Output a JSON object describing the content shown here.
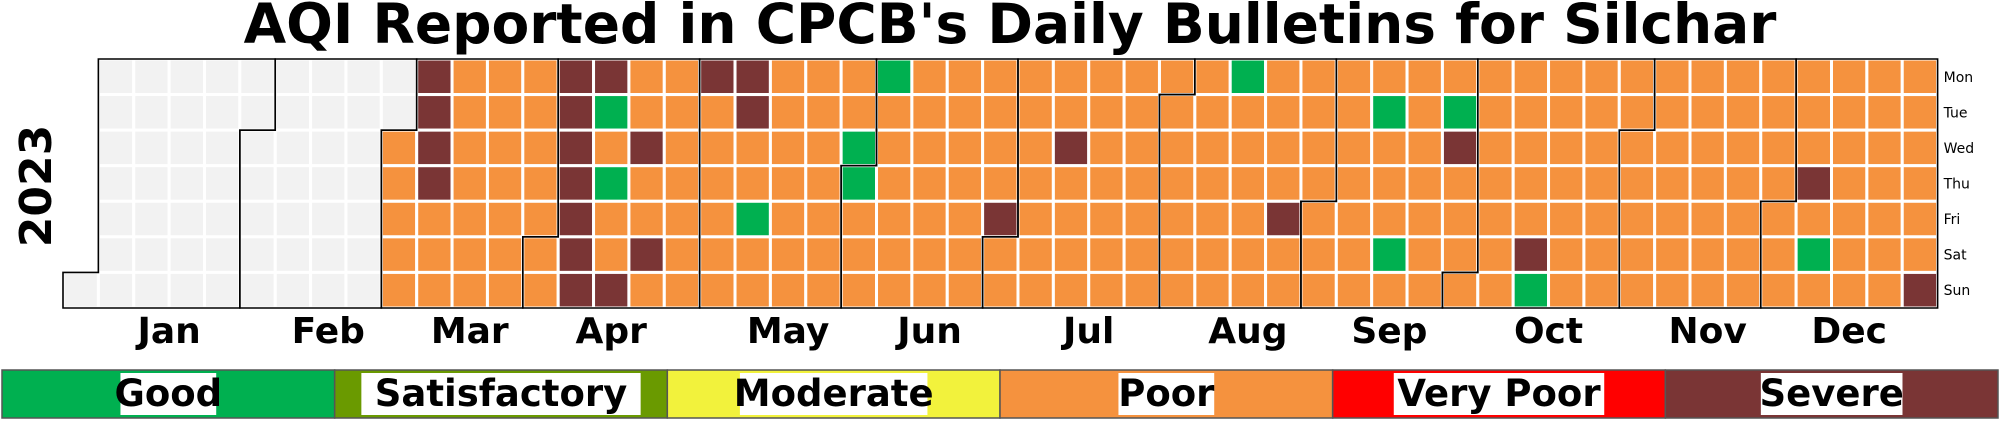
{
  "chart_data": {
    "type": "heatmap",
    "title": "AQI Reported in CPCB's Daily Bulletins for Silchar",
    "year": "2023",
    "months": [
      "Jan",
      "Feb",
      "Mar",
      "Apr",
      "May",
      "Jun",
      "Jul",
      "Aug",
      "Sep",
      "Oct",
      "Nov",
      "Dec"
    ],
    "weekdays": [
      "Mon",
      "Tue",
      "Wed",
      "Thu",
      "Fri",
      "Sat",
      "Sun"
    ],
    "categories": [
      {
        "key": "G",
        "label": "Good",
        "color": "#00b050"
      },
      {
        "key": "S",
        "label": "Satisfactory",
        "color": "#6a9a00"
      },
      {
        "key": "M",
        "label": "Moderate",
        "color": "#f2f23c"
      },
      {
        "key": "P",
        "label": "Poor",
        "color": "#f5923e"
      },
      {
        "key": "V",
        "label": "Very Poor",
        "color": "#ff0000"
      },
      {
        "key": "X",
        "label": "Severe",
        "color": "#7a3535"
      }
    ],
    "no_data_color": "#f2f2f2",
    "reporting_start": "2023-03-01",
    "default_category": "P",
    "exceptions": {
      "2023-03-06": "X",
      "2023-03-07": "X",
      "2023-03-08": "X",
      "2023-03-09": "X",
      "2023-04-03": "X",
      "2023-04-04": "X",
      "2023-04-05": "X",
      "2023-04-06": "X",
      "2023-04-07": "X",
      "2023-04-08": "X",
      "2023-04-09": "X",
      "2023-04-10": "X",
      "2023-04-11": "G",
      "2023-04-13": "G",
      "2023-04-16": "X",
      "2023-04-19": "X",
      "2023-04-22": "X",
      "2023-05-01": "X",
      "2023-05-08": "X",
      "2023-05-09": "X",
      "2023-05-12": "G",
      "2023-05-31": "G",
      "2023-06-01": "G",
      "2023-06-05": "G",
      "2023-06-30": "X",
      "2023-07-12": "X",
      "2023-08-14": "G",
      "2023-08-25": "X",
      "2023-09-12": "G",
      "2023-09-16": "G",
      "2023-09-26": "G",
      "2023-09-27": "X",
      "2023-10-14": "X",
      "2023-10-15": "G",
      "2023-12-07": "X",
      "2023-12-09": "G",
      "2023-12-31": "X"
    }
  }
}
